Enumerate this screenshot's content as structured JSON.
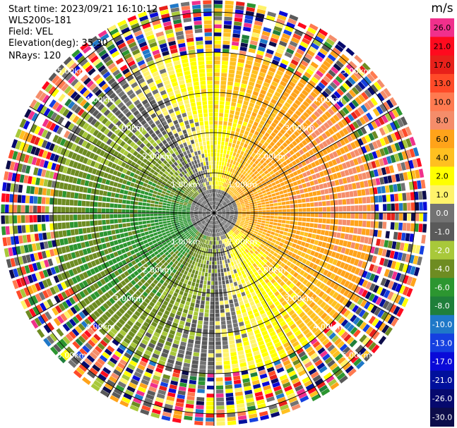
{
  "chart_data": {
    "type": "heatmap",
    "subtype": "PPI radial velocity (polar)",
    "header": {
      "start_time": "Start time: 2023/09/21 16:10:12",
      "instrument": "WLS200s-181",
      "field": "Field: VEL",
      "elevation": "Elevation(deg): 35.30",
      "nrays": "NRays: 120"
    },
    "colorbar": {
      "unit_label": "m/s",
      "tick_labels": [
        "26.0",
        "21.0",
        "17.0",
        "13.0",
        "10.0",
        "8.0",
        "6.0",
        "4.0",
        "2.0",
        "1.0",
        "0.0",
        "-1.0",
        "-2.0",
        "-4.0",
        "-6.0",
        "-8.0",
        "-10.0",
        "-13.0",
        "-17.0",
        "-21.0",
        "-26.0",
        "-30.0"
      ],
      "colors": [
        "#f0308c",
        "#ff0a1e",
        "#e8201a",
        "#ff4a28",
        "#ff7a50",
        "#f58d6a",
        "#ffa31a",
        "#ffc020",
        "#ffff00",
        "#fff36a",
        "#737373",
        "#5a5a5a",
        "#a8c83a",
        "#6e8c22",
        "#2c9630",
        "#1f7f3a",
        "#1f78c8",
        "#1540e0",
        "#0a0ad8",
        "#00109c",
        "#06096e",
        "#0c0c4a"
      ]
    },
    "range_rings_km": [
      1,
      2,
      3,
      4,
      5
    ],
    "ring_labels": [
      "1.00km",
      "2.00km",
      "3.00km",
      "4.00km",
      "5.00km"
    ],
    "num_rays": 120,
    "max_range_km": 5.3,
    "velocity_pattern": {
      "description": "Dipole pattern: positive (yellow/orange) velocities toward east/north-east, negative (green) toward west/south-west; noisy aliased values beyond ~4 km",
      "amplitude_ms": 6,
      "max_direction_deg": 75,
      "offset_ms": 2.5,
      "clean_range_km": 4.0
    }
  }
}
